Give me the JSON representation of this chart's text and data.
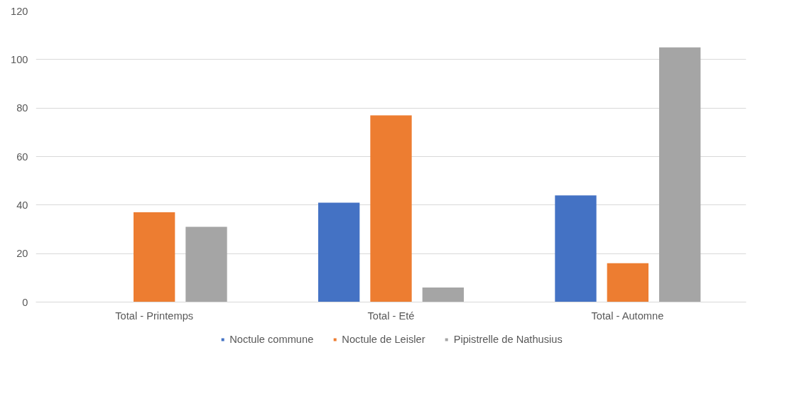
{
  "chart_data": {
    "type": "bar",
    "categories": [
      "Total - Printemps",
      "Total - Eté",
      "Total - Automne"
    ],
    "series": [
      {
        "name": "Noctule commune",
        "color": "#4472c4",
        "values": [
          0,
          41,
          44
        ]
      },
      {
        "name": "Noctule de Leisler",
        "color": "#ed7d31",
        "values": [
          37,
          77,
          16
        ]
      },
      {
        "name": "Pipistrelle de Nathusius",
        "color": "#a5a5a5",
        "values": [
          31,
          6,
          105
        ]
      }
    ],
    "ylim": [
      0,
      120
    ],
    "yticks": [
      0,
      20,
      40,
      60,
      80,
      100,
      120
    ],
    "grid": "y",
    "legend": "bottom"
  }
}
